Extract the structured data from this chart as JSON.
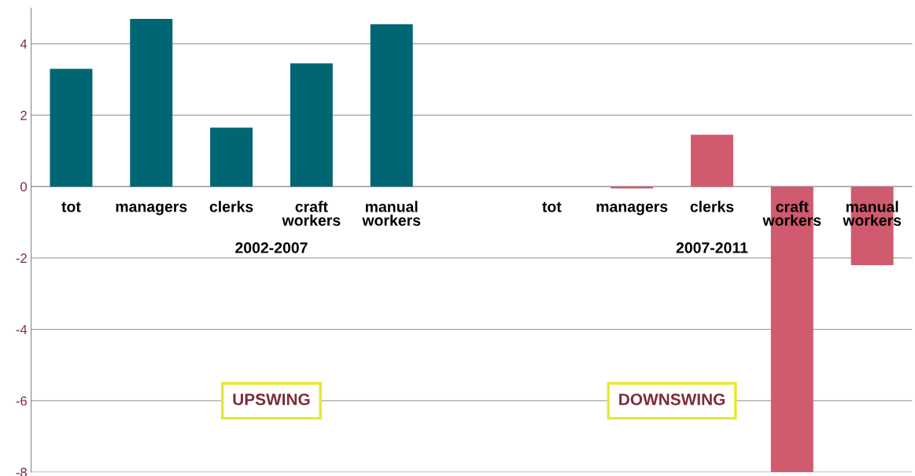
{
  "chart_data": {
    "type": "bar",
    "categories": [
      "tot",
      "managers",
      "clerks",
      "craft workers",
      "manual workers",
      null,
      "tot",
      "managers",
      "clerks",
      "craft workers",
      "manual workers"
    ],
    "values": [
      3.3,
      4.7,
      1.65,
      3.45,
      4.55,
      null,
      0,
      -0.05,
      1.45,
      -8,
      -2.2
    ],
    "colors": [
      "#006673",
      "#006673",
      "#006673",
      "#006673",
      "#006673",
      "#006673",
      "#d05a6e",
      "#d05a6e",
      "#d05a6e",
      "#d05a6e",
      "#d05a6e"
    ],
    "ylim": [
      -8,
      5
    ],
    "yticks": [
      -8,
      -6,
      -4,
      -2,
      0,
      2,
      4
    ],
    "grid": "y",
    "annotations": [
      "2002-2007",
      "2007-2011",
      "UPSWING",
      "DOWNSWING"
    ]
  }
}
